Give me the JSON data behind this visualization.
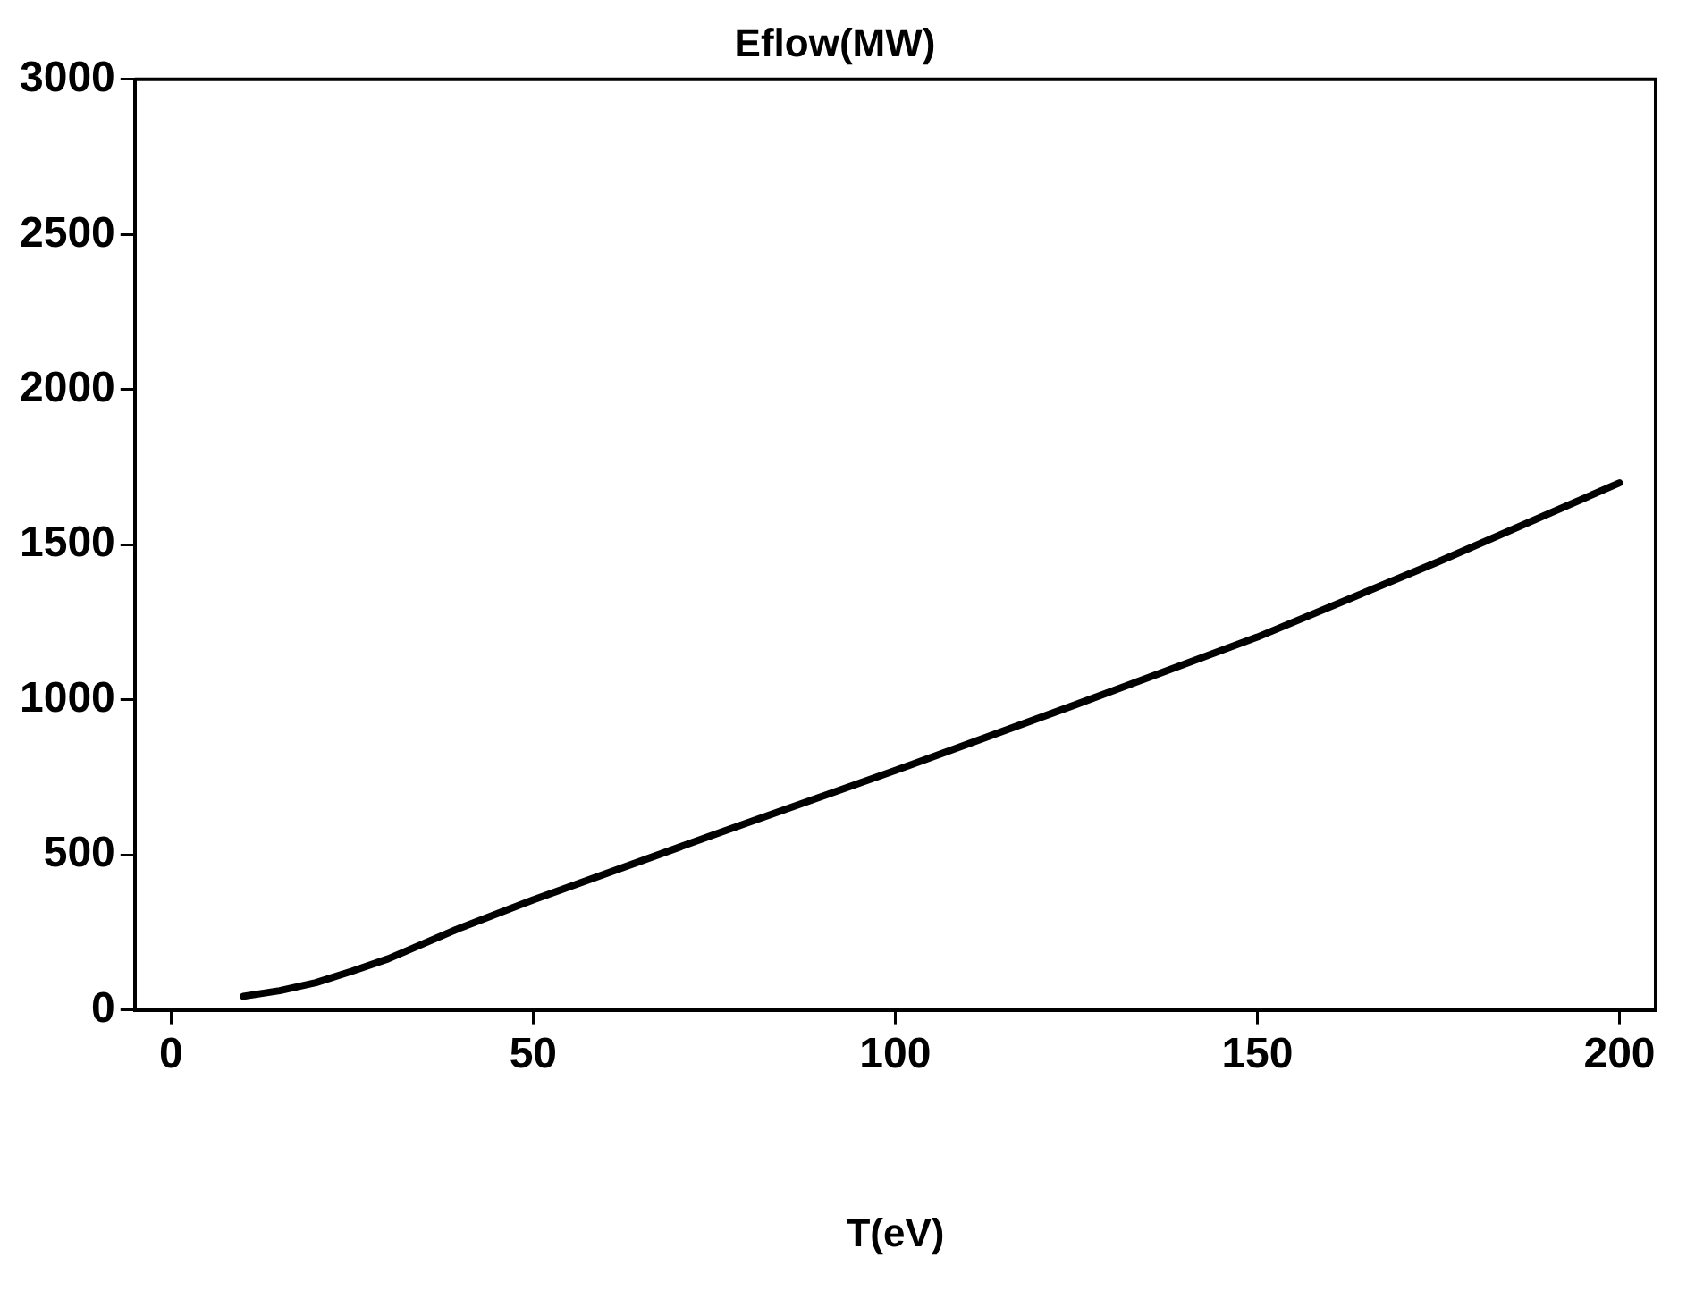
{
  "chart_data": {
    "type": "line",
    "title": "Eflow(MW)",
    "xlabel": "T(eV)",
    "x": [
      10,
      15,
      20,
      25,
      30,
      40,
      50,
      75,
      100,
      125,
      150,
      175,
      200
    ],
    "series": [
      {
        "color": "#000000",
        "values": [
          44,
          62,
          88,
          125,
          165,
          265,
          355,
          565,
          772,
          985,
          1202,
          1445,
          1699
        ]
      }
    ],
    "xlim": [
      -5,
      205
    ],
    "xticks": [
      0,
      50,
      100,
      150,
      200
    ],
    "ylim": [
      0,
      3000
    ],
    "yticks": [
      0,
      500,
      1000,
      1500,
      2000,
      2500,
      3000
    ],
    "grid": false,
    "legend": false,
    "marker": "none",
    "line_style": "solid"
  }
}
